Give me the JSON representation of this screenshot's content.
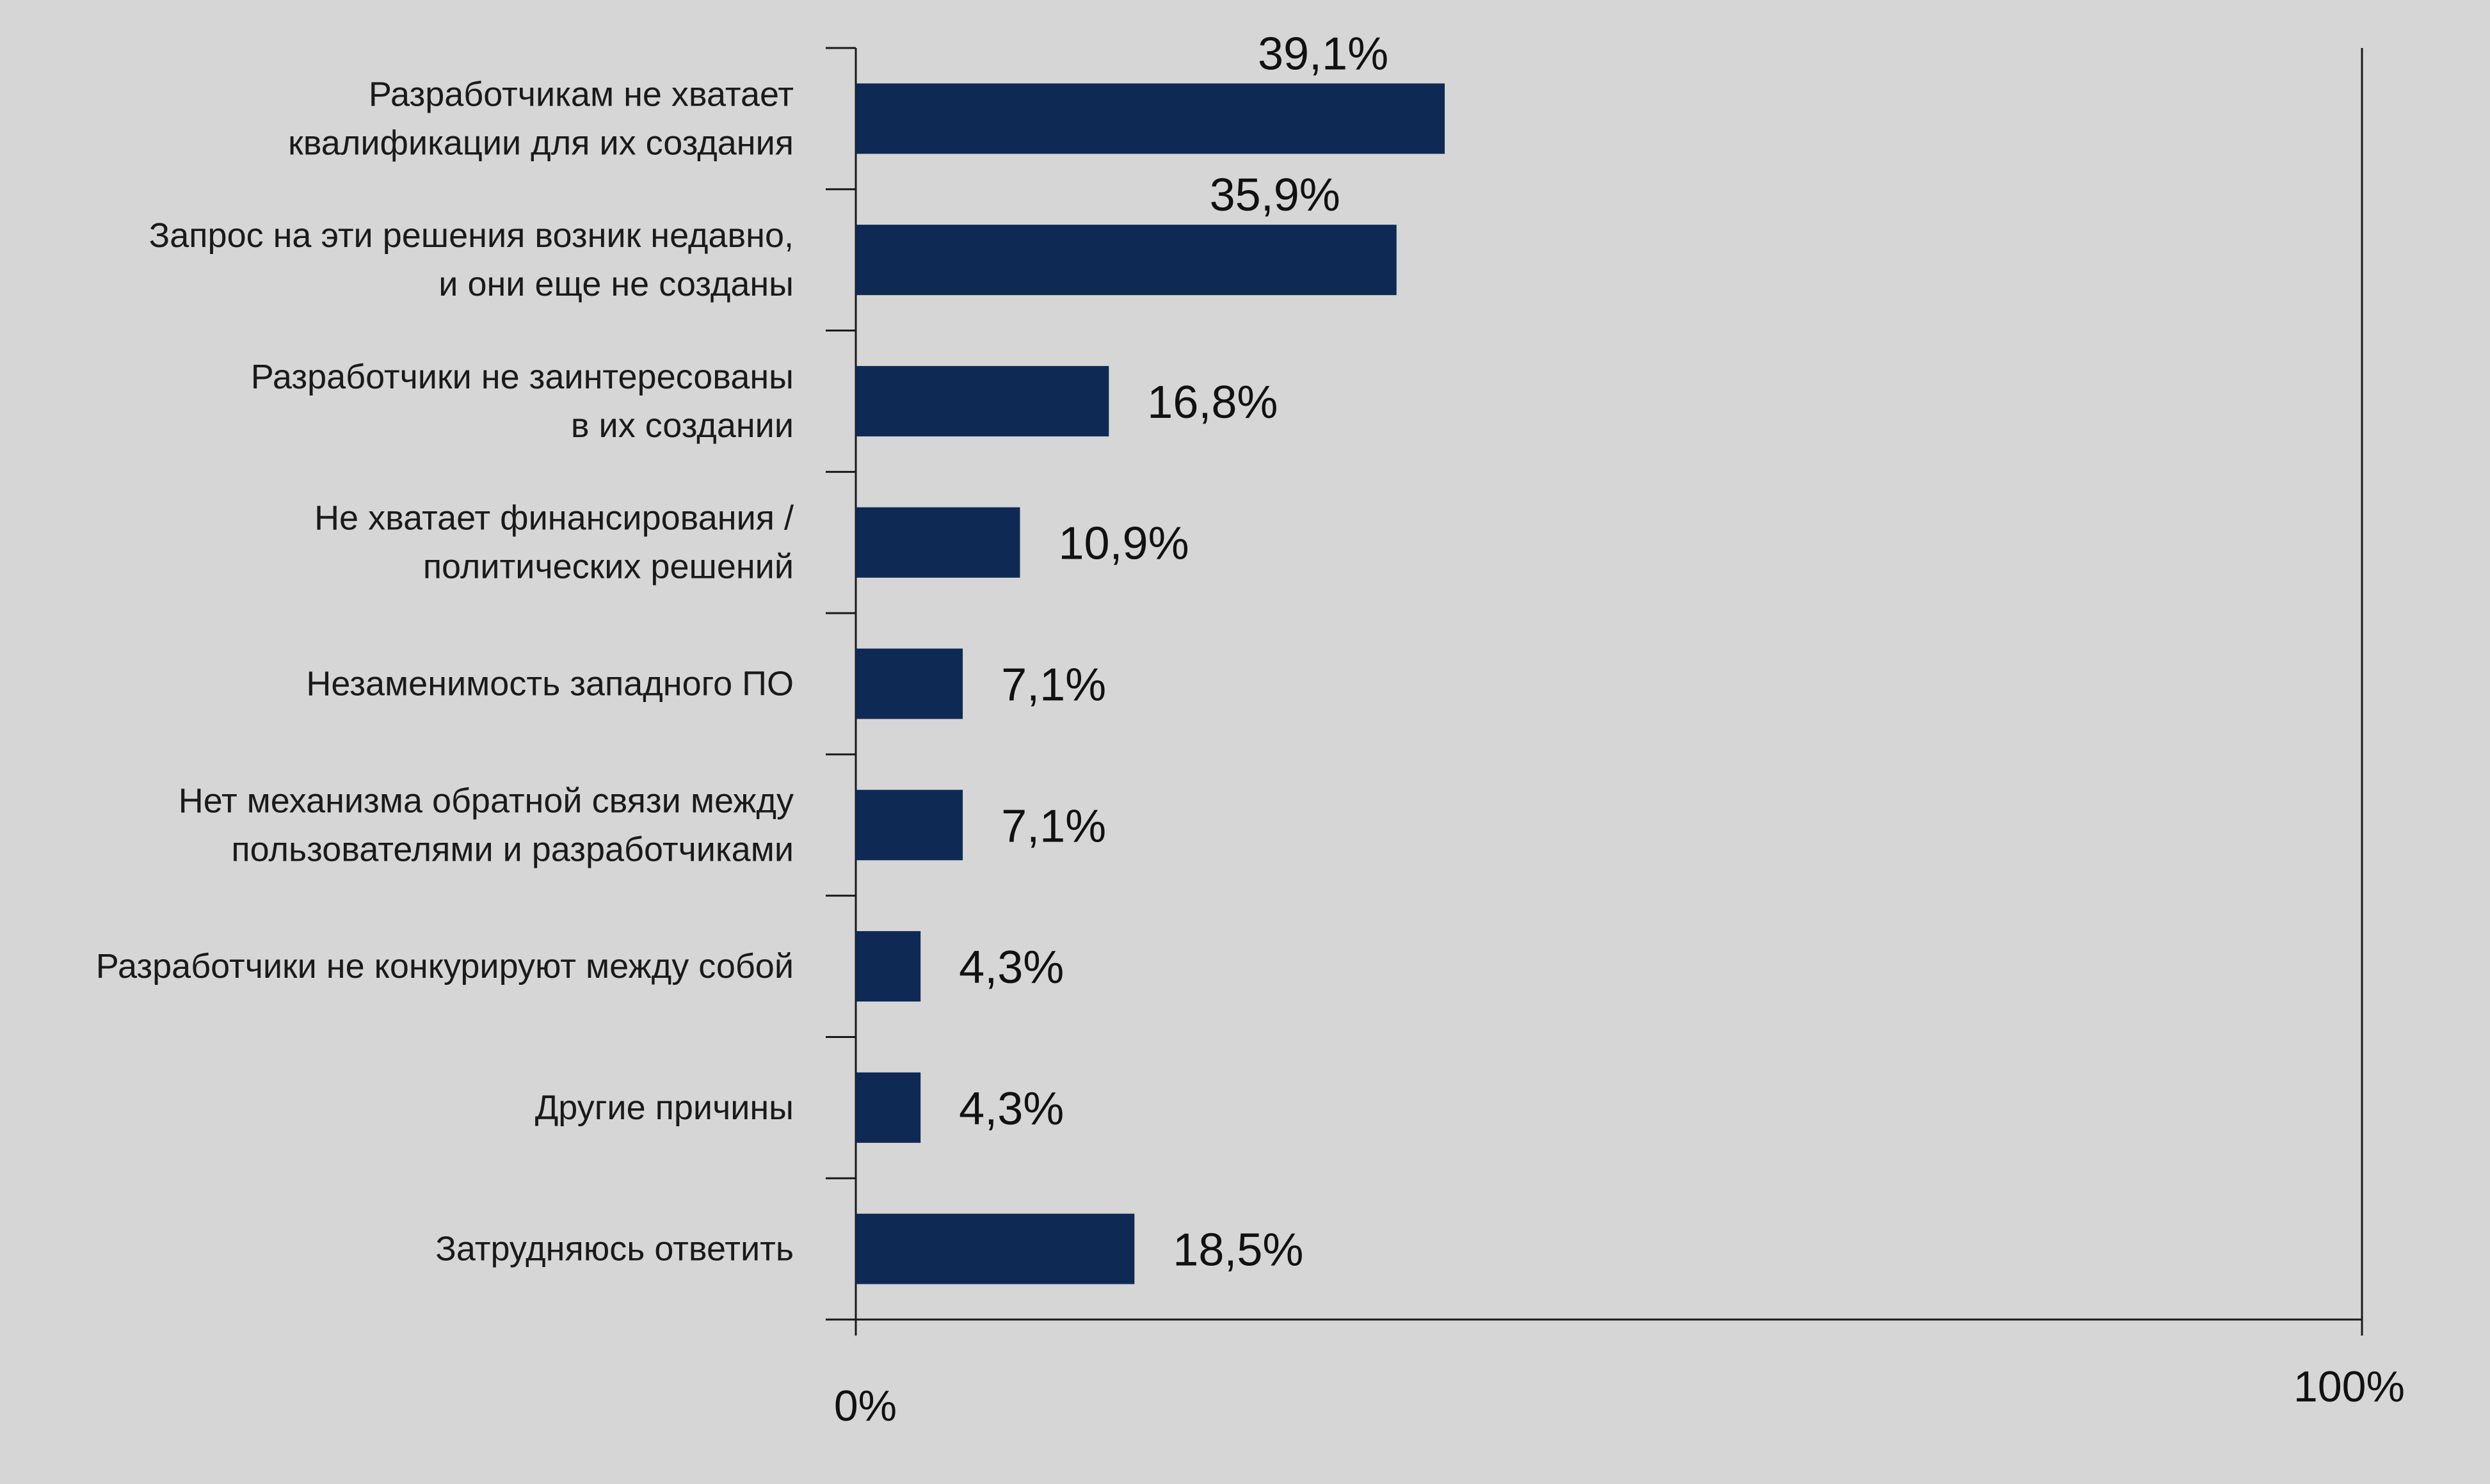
{
  "chart_data": {
    "type": "bar",
    "orientation": "horizontal",
    "categories": [
      [
        "Разработчикам не хватает",
        "квалификации для их создания"
      ],
      [
        "Запрос на эти решения возник недавно,",
        "и они еще не созданы"
      ],
      [
        "Разработчики не заинтересованы",
        "в их  создании"
      ],
      [
        "Не хватает финансирования /",
        "политических  решений"
      ],
      [
        "Незаменимость западного ПО"
      ],
      [
        "Нет механизма обратной связи между",
        "пользователями и разработчиками"
      ],
      [
        "Разработчики не конкурируют между собой"
      ],
      [
        "Другие причины"
      ],
      [
        "Затрудняюсь ответить"
      ]
    ],
    "values": [
      39.1,
      35.9,
      16.8,
      10.9,
      7.1,
      7.1,
      4.3,
      4.3,
      18.5
    ],
    "value_labels": [
      "39,1%",
      "35,9%",
      "16,8%",
      "10,9%",
      "7,1%",
      "7,1%",
      "4,3%",
      "4,3%",
      "18,5%"
    ],
    "xlim": [
      0,
      100
    ],
    "x_tick_labels": [
      "0%",
      "100%"
    ],
    "title": "",
    "xlabel": "",
    "ylabel": "",
    "grid": false,
    "legend": "none",
    "colors": {
      "bar": "#0e2a54",
      "background": "#d6d6d6",
      "axis": "#1a1a1a",
      "text": "#111111"
    }
  }
}
